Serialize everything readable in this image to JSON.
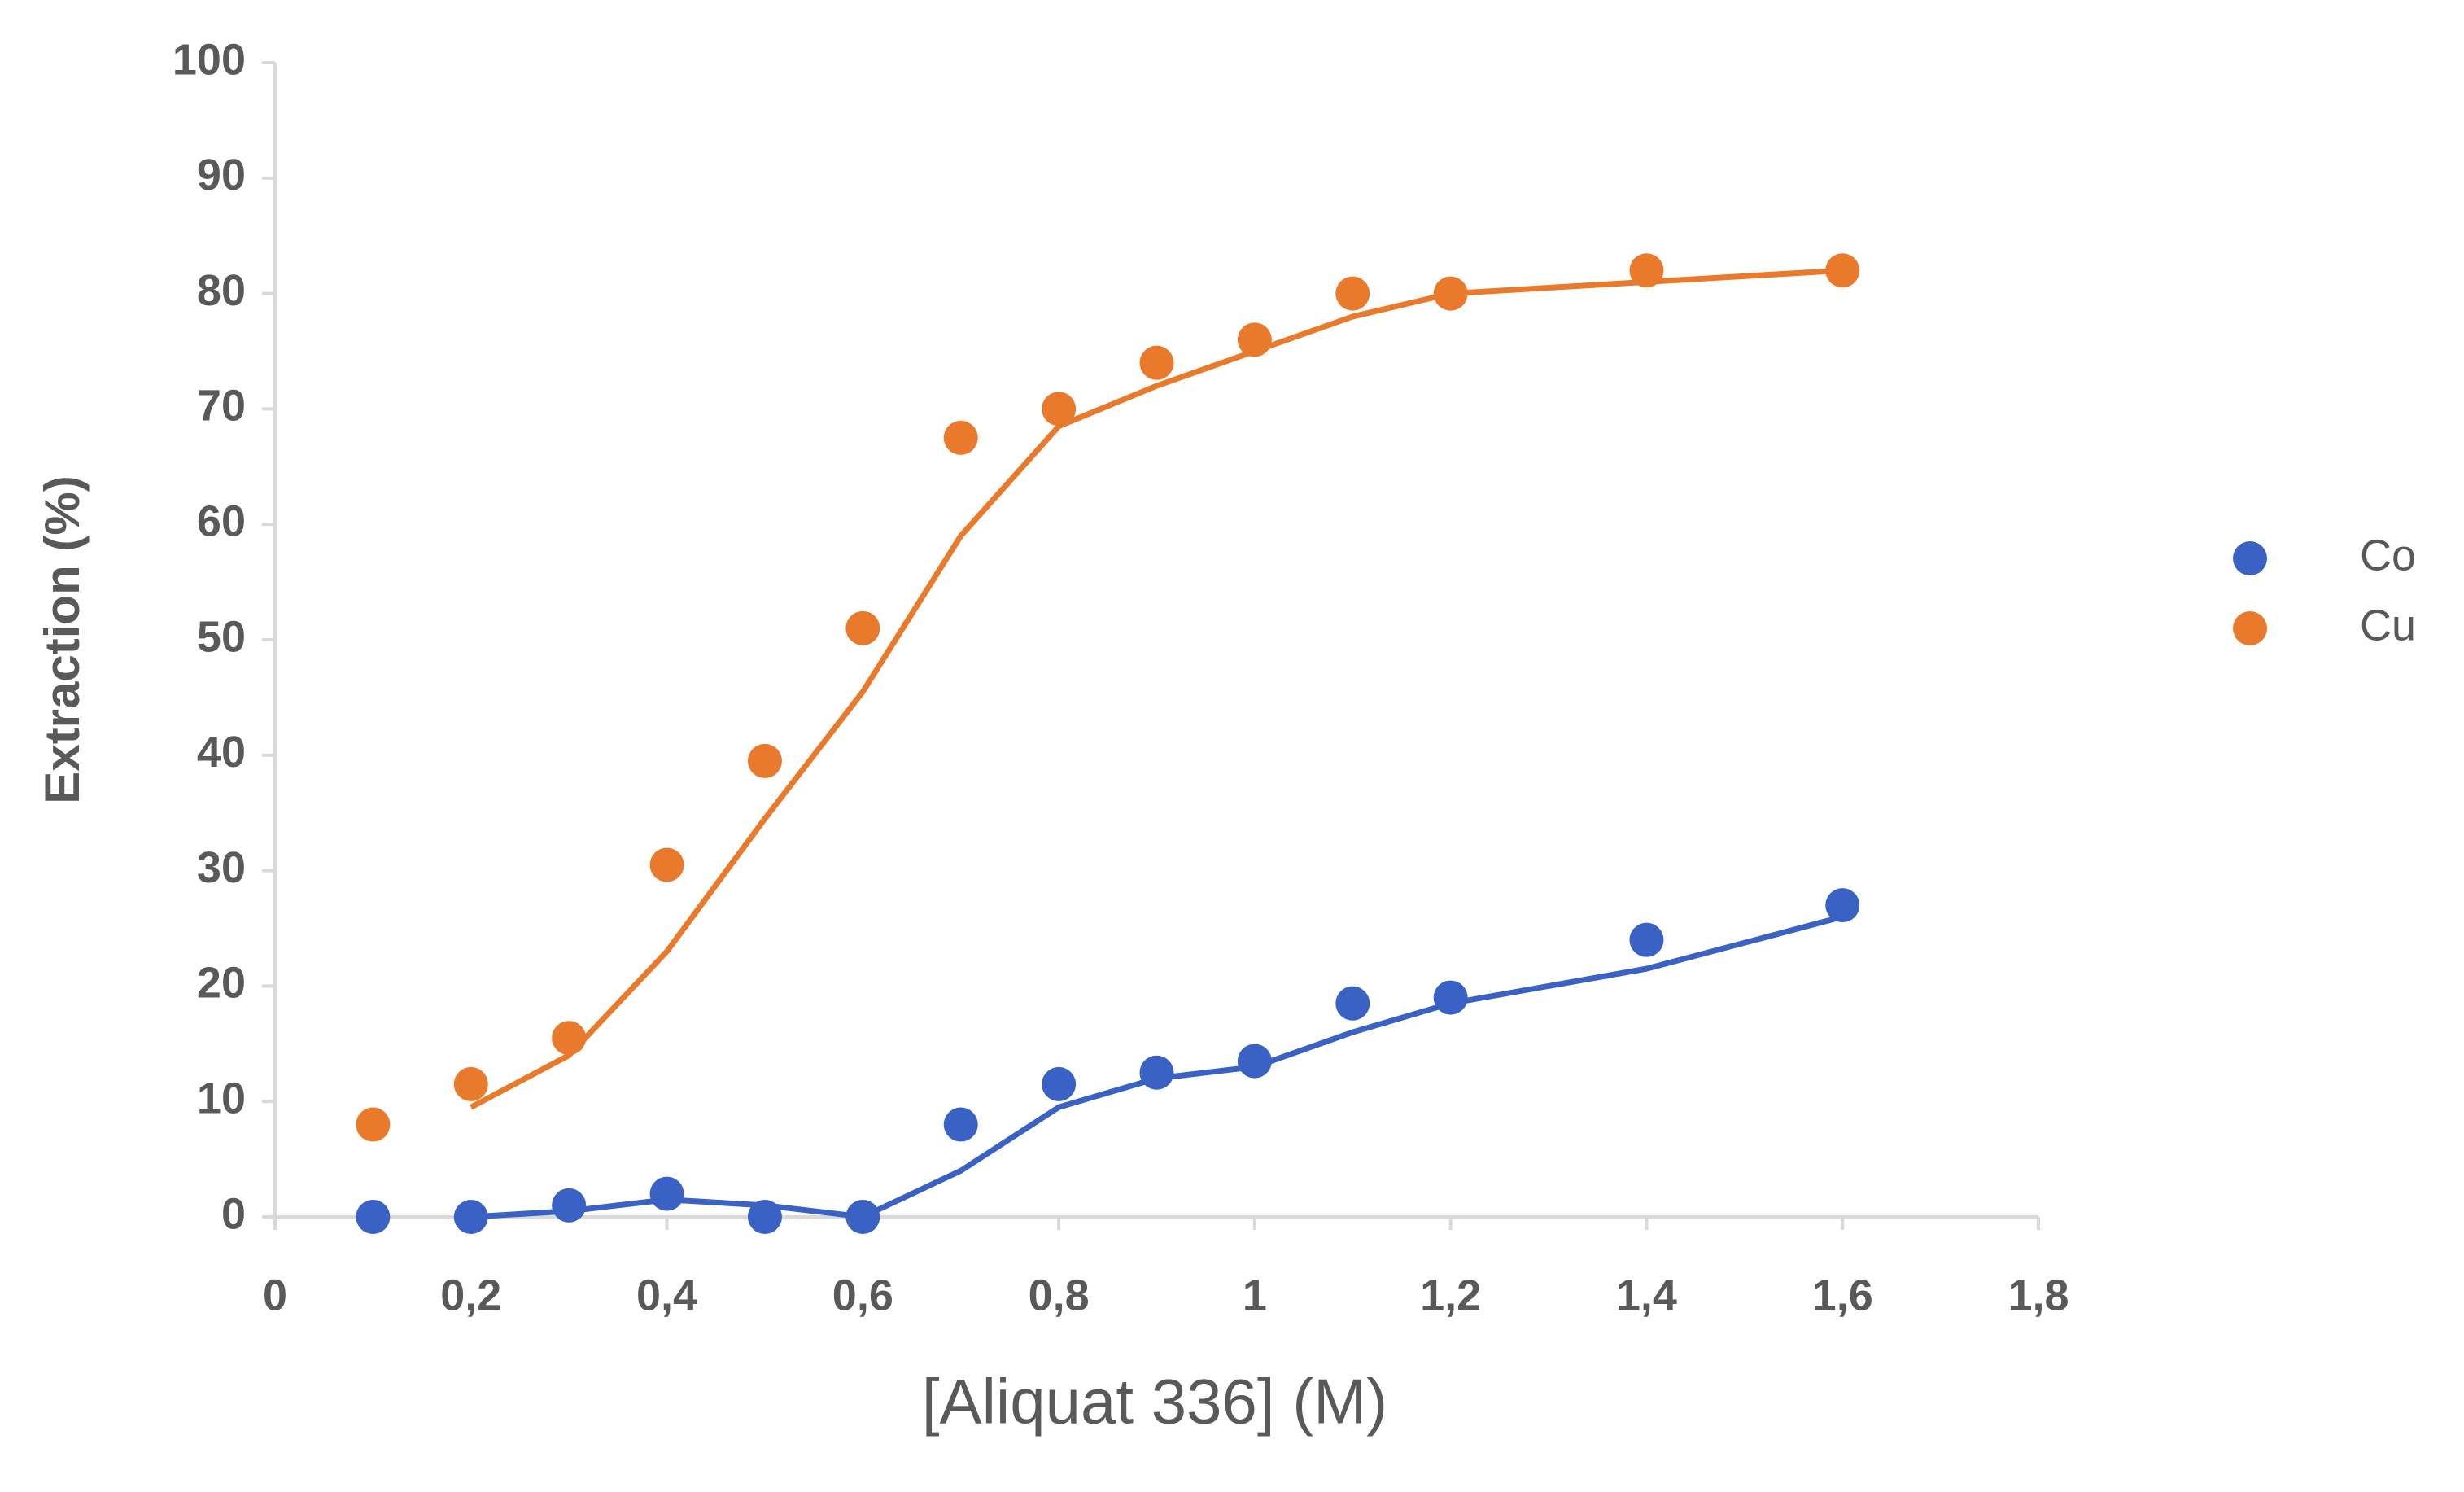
{
  "chart_data": {
    "type": "scatter",
    "xlabel": "[Aliquat 336] (M)",
    "ylabel": "Extraction (%)",
    "xlim": [
      0,
      1.8
    ],
    "ylim": [
      0,
      100
    ],
    "xticks": [
      0,
      {
        "value": 0.2,
        "label": "0,2"
      },
      {
        "value": 0.4,
        "label": "0,4"
      },
      {
        "value": 0.6,
        "label": "0,6"
      },
      {
        "value": 0.8,
        "label": "0,8"
      },
      1,
      {
        "value": 1.2,
        "label": "1,2"
      },
      {
        "value": 1.4,
        "label": "1,4"
      },
      {
        "value": 1.6,
        "label": "1,6"
      },
      {
        "value": 1.8,
        "label": "1,8"
      }
    ],
    "yticks": [
      0,
      10,
      20,
      30,
      40,
      50,
      60,
      70,
      80,
      90,
      100
    ],
    "x": [
      0.1,
      0.2,
      0.3,
      0.4,
      0.5,
      0.6,
      0.7,
      0.8,
      0.9,
      1.0,
      1.1,
      1.2,
      1.4,
      1.6
    ],
    "legend": "right",
    "series": [
      {
        "name": "Co",
        "color": "#3a62c4",
        "values": [
          0,
          0,
          1,
          2,
          0,
          0,
          8,
          11.5,
          12.5,
          13.5,
          18.5,
          19,
          24,
          27
        ],
        "fit": [
          null,
          0,
          0.5,
          1.5,
          1,
          0,
          4,
          9.5,
          12,
          13,
          16,
          18.5,
          21.5,
          26
        ]
      },
      {
        "name": "Cu",
        "color": "#e97a2c",
        "values": [
          8,
          11.5,
          15.5,
          30.5,
          39.5,
          51,
          67.5,
          70,
          74,
          76,
          80,
          80,
          82,
          82
        ],
        "fit": [
          null,
          9.5,
          14,
          23,
          34.5,
          45.5,
          59,
          68.5,
          72,
          75,
          78,
          80,
          81,
          82
        ]
      }
    ]
  }
}
